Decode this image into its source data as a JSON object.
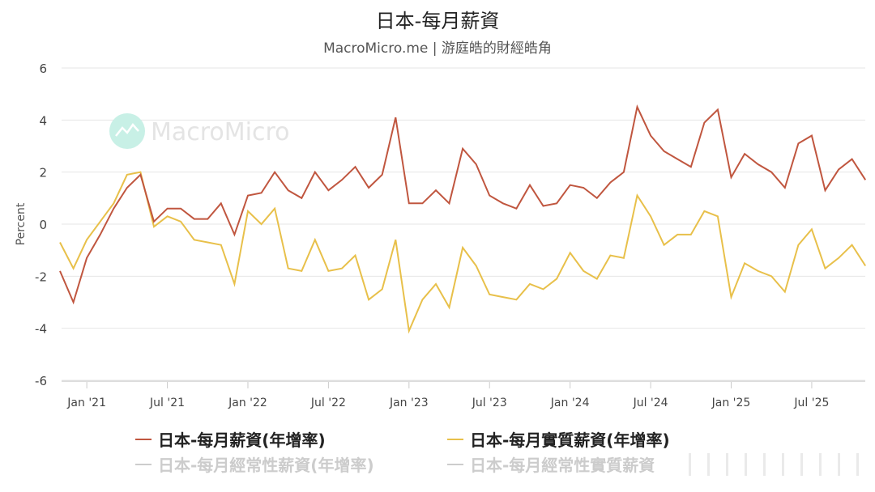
{
  "title": "日本-每月薪資",
  "subtitle": "MacroMicro.me | 游庭皓的財經皓角",
  "watermark": "MacroMicro",
  "colors": {
    "nominal": "#c0563f",
    "real": "#e8c04a",
    "grid": "#e6e6e6",
    "watermark_icon": "#c8f0e6",
    "watermark_text": "#e4e4e4"
  },
  "legend": [
    {
      "label": "日本-每月薪資(年增率)",
      "color": "#c0563f",
      "active": true
    },
    {
      "label": "日本-每月實質薪資(年增率)",
      "color": "#e8c04a",
      "active": true
    },
    {
      "label": "日本-每月經常性薪資(年增率)",
      "color": "#cccccc",
      "active": false
    },
    {
      "label": "日本-每月經常性實質薪資",
      "color": "#cccccc",
      "active": false
    }
  ],
  "chart_data": {
    "type": "line",
    "title": "日本-每月薪資",
    "subtitle": "MacroMicro.me | 游庭皓的財經皓角",
    "xlabel": "",
    "ylabel": "Percent",
    "ylim": [
      -6,
      6
    ],
    "yticks": [
      6,
      4,
      2,
      0,
      -2,
      -4,
      -6
    ],
    "grid": true,
    "legend_position": "bottom",
    "x_start": "2020-11",
    "x_end": "2025-11",
    "xtick_labels": [
      "Jan '21",
      "Jul '21",
      "Jan '22",
      "Jul '22",
      "Jan '23",
      "Jul '23",
      "Jan '24",
      "Jul '24",
      "Jan '25",
      "Jul '25"
    ],
    "xtick_index": [
      2,
      8,
      14,
      20,
      26,
      32,
      38,
      44,
      50,
      56
    ],
    "series": [
      {
        "name": "日本-每月薪資(年增率)",
        "color": "#c0563f",
        "values": [
          -1.8,
          -3.0,
          -1.3,
          -0.4,
          0.6,
          1.4,
          1.9,
          0.1,
          0.6,
          0.6,
          0.2,
          0.2,
          0.8,
          -0.4,
          1.1,
          1.2,
          2.0,
          1.3,
          1.0,
          2.0,
          1.3,
          1.7,
          2.2,
          1.4,
          1.9,
          4.1,
          0.8,
          0.8,
          1.3,
          0.8,
          2.9,
          2.3,
          1.1,
          0.8,
          0.6,
          1.5,
          0.7,
          0.8,
          1.5,
          1.4,
          1.0,
          1.6,
          2.0,
          4.5,
          3.4,
          2.8,
          2.5,
          2.2,
          3.9,
          4.4,
          1.8,
          2.7,
          2.3,
          2.0,
          1.4,
          3.1,
          3.4,
          1.3,
          2.1,
          2.5,
          1.7
        ]
      },
      {
        "name": "日本-每月實質薪資(年增率)",
        "color": "#e8c04a",
        "values": [
          -0.7,
          -1.7,
          -0.6,
          0.1,
          0.8,
          1.9,
          2.0,
          -0.1,
          0.3,
          0.1,
          -0.6,
          -0.7,
          -0.8,
          -2.3,
          0.5,
          0.0,
          0.6,
          -1.7,
          -1.8,
          -0.6,
          -1.8,
          -1.7,
          -1.2,
          -2.9,
          -2.5,
          -0.6,
          -4.1,
          -2.9,
          -2.3,
          -3.2,
          -0.9,
          -1.6,
          -2.7,
          -2.8,
          -2.9,
          -2.3,
          -2.5,
          -2.1,
          -1.1,
          -1.8,
          -2.1,
          -1.2,
          -1.3,
          1.1,
          0.3,
          -0.8,
          -0.4,
          -0.4,
          0.5,
          0.3,
          -2.8,
          -1.5,
          -1.8,
          -2.0,
          -2.6,
          -0.8,
          -0.2,
          -1.7,
          -1.3,
          -0.8,
          -1.6
        ]
      }
    ]
  }
}
